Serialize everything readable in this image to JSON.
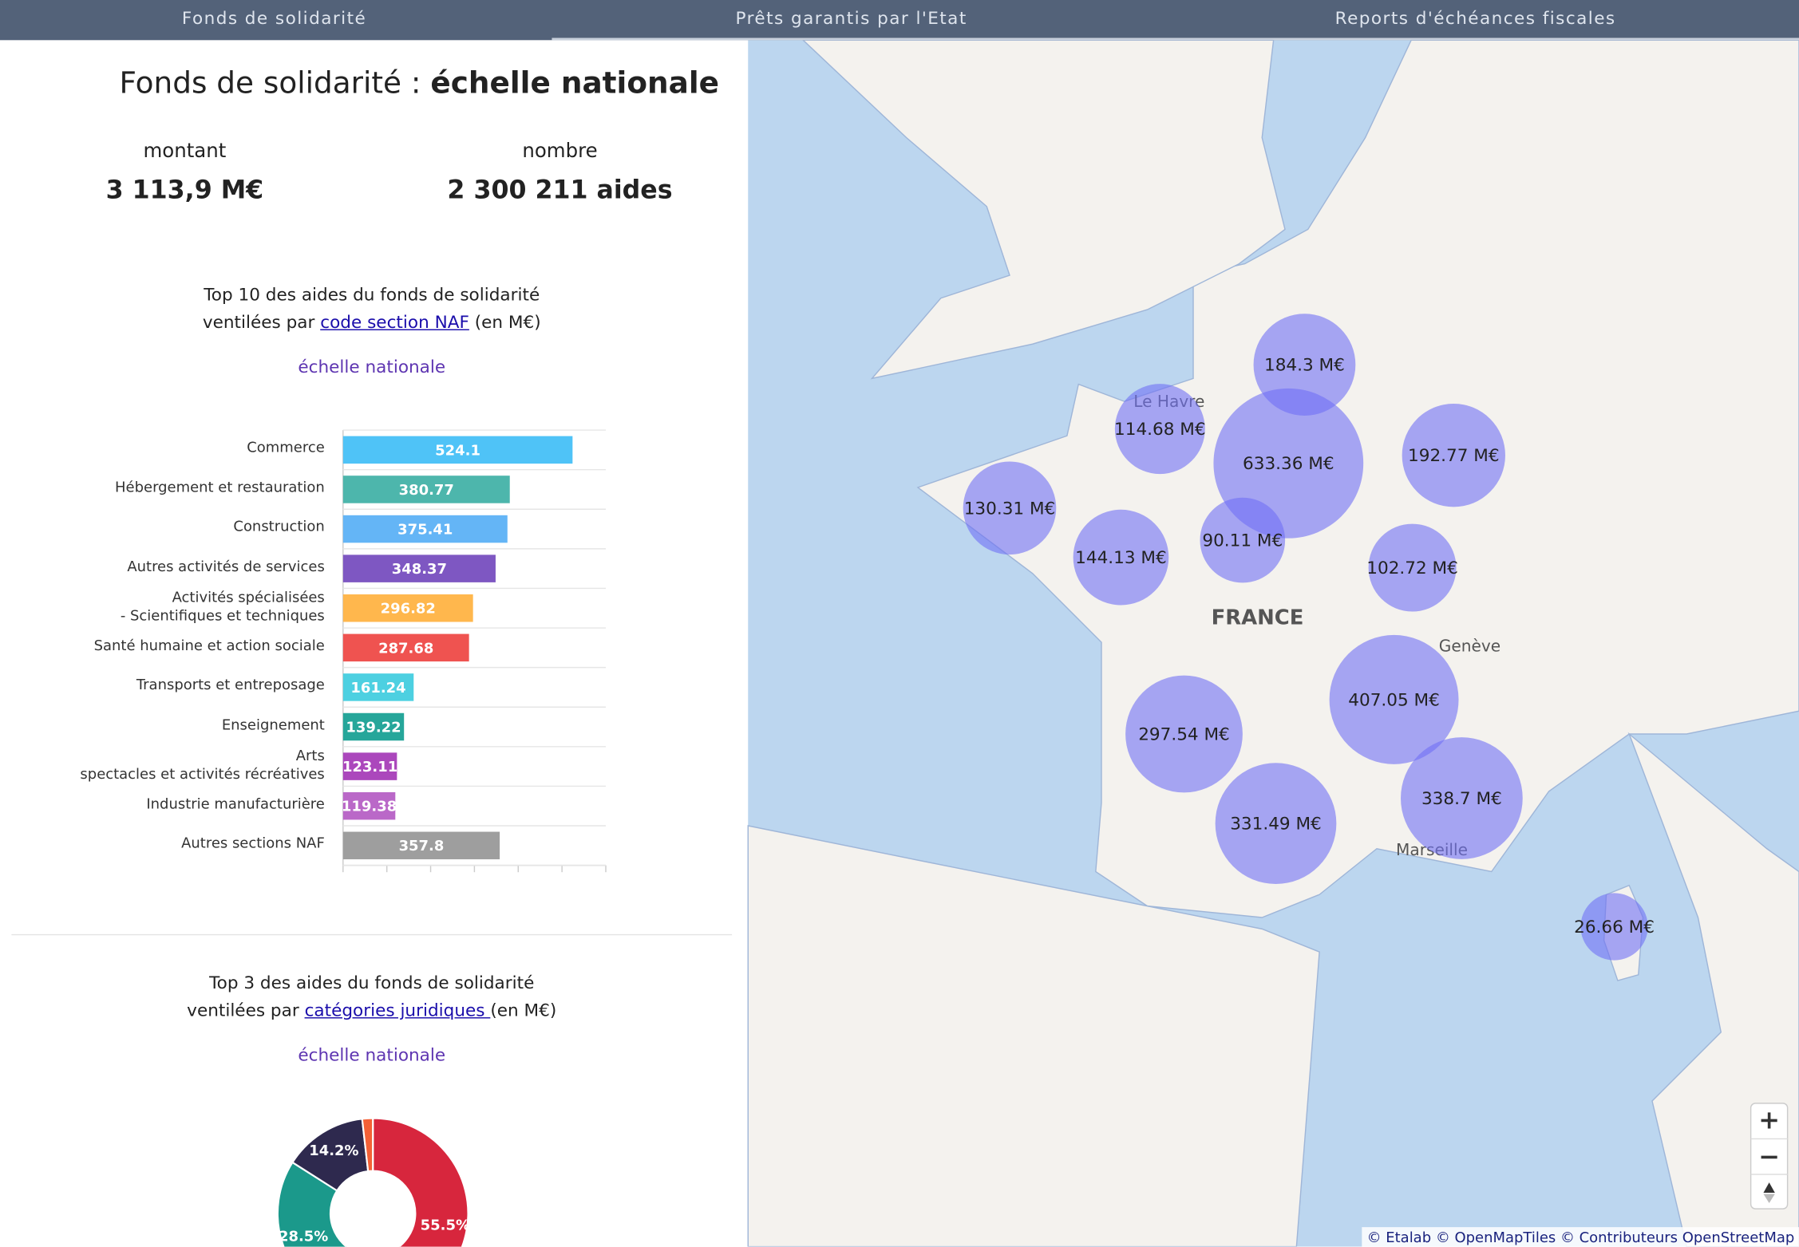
{
  "tabs": [
    "Fonds de solidarité",
    "Prêts garantis par l'Etat",
    "Reports d'échéances fiscales"
  ],
  "header": {
    "title": "Fonds de solidarité : ",
    "title_bold": "échelle nationale"
  },
  "stats": [
    {
      "label": "montant",
      "value": "3 113,9 M€"
    },
    {
      "label": "nombre",
      "value": "2 300 211 aides"
    }
  ],
  "chart_data": [
    {
      "type": "bar",
      "orientation": "horizontal",
      "title": [
        "Top 10 des aides du fonds de solidarité",
        "ventilées par "
      ],
      "title_link": "code section NAF",
      "title_suffix": " (en M€)",
      "subtitle": "échelle nationale",
      "categories": [
        "Commerce",
        "Hébergement et restauration",
        "Construction",
        "Autres activités de services",
        "Activités spécialisées\n- Scientifiques et techniques",
        "Santé humaine et action sociale",
        "Transports et entreposage",
        "Enseignement",
        "Arts\nspectacles et activités récréatives",
        "Industrie manufacturière",
        "Autres sections NAF"
      ],
      "values": [
        524.1,
        380.77,
        375.41,
        348.37,
        296.82,
        287.68,
        161.24,
        139.22,
        123.11,
        119.38,
        357.8
      ],
      "colors": [
        "#4fc3f7",
        "#4db6ac",
        "#64b5f6",
        "#7e57c2",
        "#ffb74d",
        "#ef5350",
        "#4dd0e1",
        "#26a69a",
        "#ab47bc",
        "#ba68c8",
        "#9e9e9e"
      ],
      "xlim": [
        0,
        600
      ],
      "xticks": [
        0,
        100,
        200,
        300,
        400,
        500,
        600
      ]
    },
    {
      "type": "pie",
      "donut": true,
      "title": [
        "Top 3 des aides du fonds de solidarité",
        "ventilées par "
      ],
      "title_link": "catégories juridiques ",
      "title_suffix": "(en M€)",
      "subtitle": "échelle nationale",
      "values": [
        55.5,
        28.5,
        14.2,
        1.8
      ],
      "value_labels": [
        "55.5%",
        "28.5%",
        "14.2%",
        null
      ],
      "colors": [
        "#d7263d",
        "#1b998b",
        "#2e294e",
        "#f46036"
      ]
    },
    {
      "type": "bubble-map",
      "values": [
        184.3,
        114.68,
        633.36,
        192.77,
        130.31,
        144.13,
        90.11,
        102.72,
        407.05,
        297.54,
        331.49,
        338.7,
        26.66
      ],
      "value_labels": [
        "184.3 M€",
        "114.68 M€",
        "633.36 M€",
        "192.77 M€",
        "130.31 M€",
        "144.13 M€",
        "90.11 M€",
        "102.72 M€",
        "407.05 M€",
        "297.54 M€",
        "331.49 M€",
        "338.7 M€",
        "26.66 M€"
      ],
      "color": "#6f6ff5"
    }
  ],
  "map_labels": [
    "Le Havre",
    "FRANCE",
    "Genève",
    "Marseille"
  ],
  "attribution": "© Etalab © OpenMapTiles © Contributeurs OpenStreetMap"
}
